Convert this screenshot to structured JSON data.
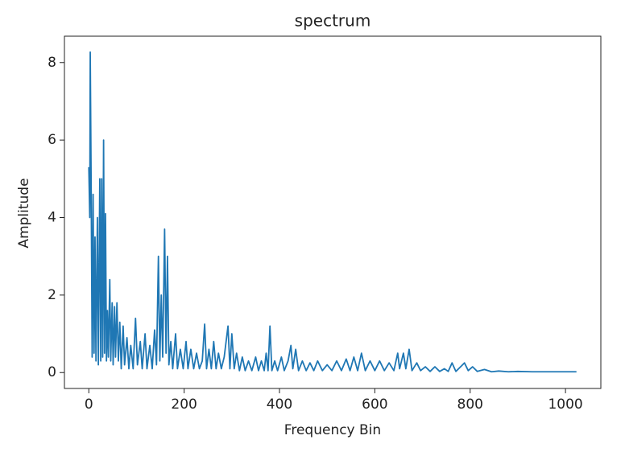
{
  "chart_data": {
    "type": "line",
    "title": "spectrum",
    "x_label": "Frequency Bin",
    "y_label": "Amplitude",
    "xlim": [
      -51.15,
      1074.15
    ],
    "ylim": [
      -0.41,
      8.68
    ],
    "xticks": [
      0,
      200,
      400,
      600,
      800,
      1000
    ],
    "yticks": [
      0,
      2,
      4,
      6,
      8
    ],
    "series": [
      {
        "color": "#1f77b4",
        "x": [
          0,
          2,
          3,
          5,
          7,
          9,
          11,
          13,
          15,
          18,
          20,
          23,
          25,
          27,
          29,
          31,
          33,
          35,
          37,
          39,
          41,
          44,
          46,
          49,
          51,
          54,
          56,
          59,
          62,
          65,
          68,
          72,
          75,
          80,
          84,
          88,
          93,
          98,
          102,
          108,
          112,
          118,
          122,
          128,
          133,
          138,
          142,
          146,
          149,
          152,
          155,
          159,
          162,
          165,
          168,
          172,
          176,
          182,
          186,
          192,
          198,
          204,
          208,
          214,
          220,
          226,
          232,
          238,
          243,
          247,
          252,
          257,
          262,
          267,
          272,
          278,
          284,
          292,
          296,
          300,
          305,
          310,
          316,
          322,
          328,
          335,
          342,
          350,
          356,
          362,
          368,
          372,
          376,
          380,
          384,
          390,
          396,
          404,
          410,
          418,
          424,
          428,
          434,
          440,
          448,
          456,
          464,
          472,
          480,
          490,
          500,
          510,
          520,
          530,
          540,
          548,
          556,
          564,
          572,
          580,
          590,
          600,
          610,
          620,
          630,
          640,
          648,
          652,
          660,
          665,
          672,
          678,
          688,
          696,
          706,
          716,
          726,
          736,
          746,
          754,
          762,
          770,
          780,
          788,
          796,
          805,
          815,
          830,
          845,
          860,
          880,
          900,
          930,
          960,
          990,
          1023
        ],
        "values": [
          5.3,
          4.0,
          8.27,
          4.7,
          0.4,
          4.6,
          0.5,
          3.5,
          0.3,
          4.0,
          0.2,
          5.0,
          0.3,
          5.0,
          0.4,
          6.0,
          0.5,
          4.1,
          0.3,
          1.6,
          0.4,
          2.4,
          0.3,
          1.8,
          0.2,
          1.7,
          0.4,
          1.8,
          0.3,
          1.3,
          0.1,
          1.2,
          0.2,
          0.9,
          0.1,
          0.7,
          0.1,
          1.4,
          0.2,
          0.8,
          0.1,
          1.0,
          0.1,
          0.7,
          0.1,
          1.1,
          0.2,
          3.0,
          0.3,
          2.0,
          0.4,
          3.7,
          0.5,
          3.0,
          0.2,
          0.8,
          0.1,
          1.0,
          0.1,
          0.6,
          0.1,
          0.8,
          0.1,
          0.6,
          0.1,
          0.5,
          0.1,
          0.3,
          1.25,
          0.1,
          0.6,
          0.1,
          0.8,
          0.1,
          0.5,
          0.1,
          0.4,
          1.2,
          0.1,
          1.0,
          0.1,
          0.5,
          0.05,
          0.4,
          0.05,
          0.3,
          0.05,
          0.4,
          0.05,
          0.3,
          0.05,
          0.5,
          0.05,
          1.2,
          0.05,
          0.3,
          0.05,
          0.4,
          0.05,
          0.3,
          0.7,
          0.1,
          0.6,
          0.05,
          0.3,
          0.05,
          0.25,
          0.05,
          0.3,
          0.05,
          0.2,
          0.05,
          0.3,
          0.05,
          0.35,
          0.05,
          0.4,
          0.05,
          0.5,
          0.05,
          0.3,
          0.05,
          0.3,
          0.05,
          0.25,
          0.05,
          0.5,
          0.1,
          0.5,
          0.1,
          0.6,
          0.05,
          0.25,
          0.05,
          0.15,
          0.03,
          0.15,
          0.03,
          0.1,
          0.03,
          0.25,
          0.03,
          0.15,
          0.25,
          0.05,
          0.15,
          0.03,
          0.08,
          0.02,
          0.04,
          0.02,
          0.03,
          0.02,
          0.02,
          0.02,
          0.02
        ]
      }
    ]
  }
}
